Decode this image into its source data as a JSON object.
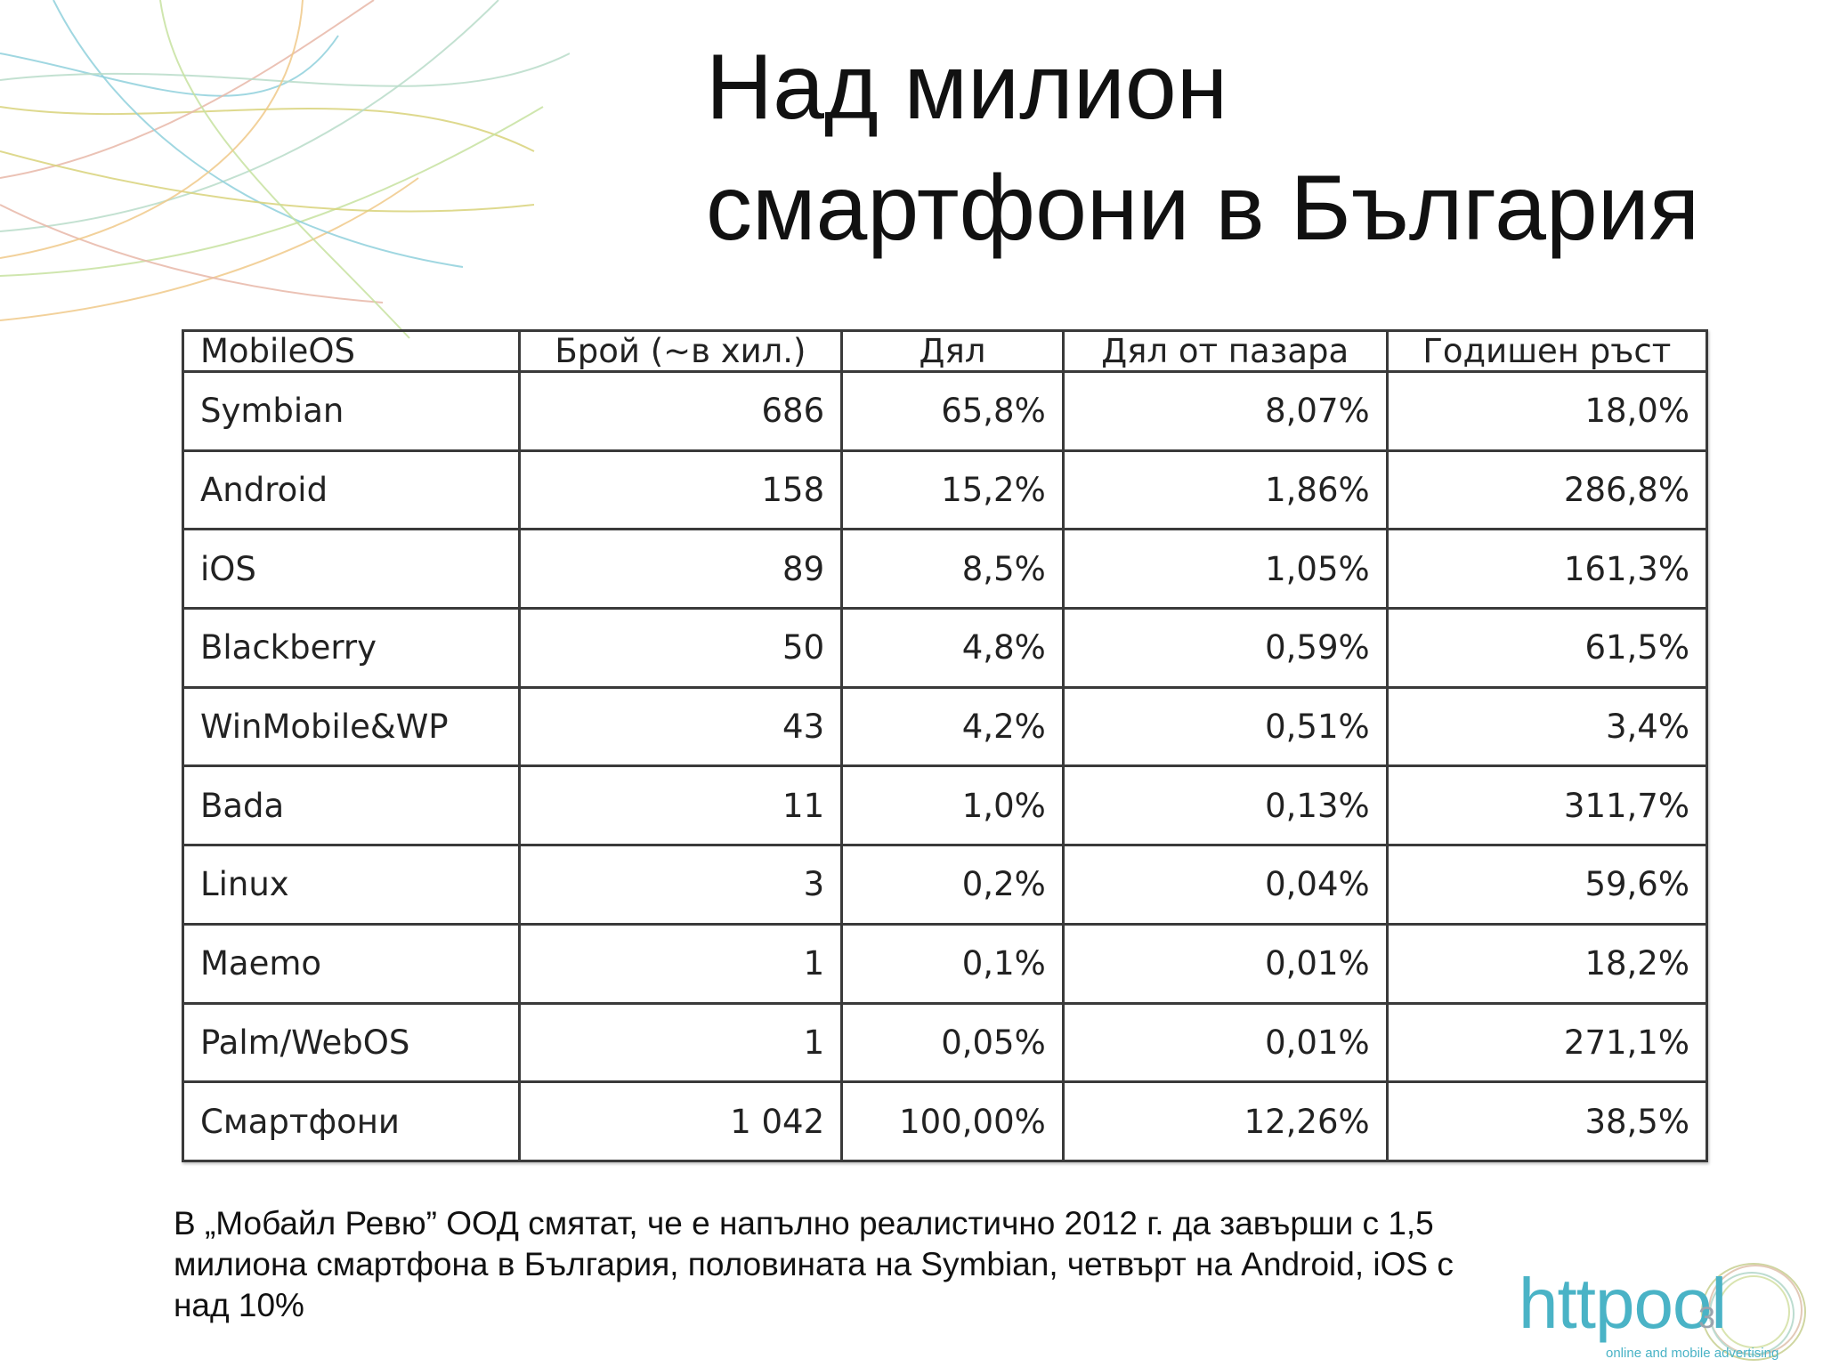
{
  "slide": {
    "title_line1": "Над милион",
    "title_line2": "смартфони в България",
    "page_number": "3"
  },
  "table": {
    "headers": [
      "MobileOS",
      "Брой (~в хил.)",
      "Дял",
      "Дял от пазара",
      "Годишен ръст"
    ],
    "rows": [
      [
        "Symbian",
        "686",
        "65,8%",
        "8,07%",
        "18,0%"
      ],
      [
        "Android",
        "158",
        "15,2%",
        "1,86%",
        "286,8%"
      ],
      [
        "iOS",
        "89",
        "8,5%",
        "1,05%",
        "161,3%"
      ],
      [
        "Blackberry",
        "50",
        "4,8%",
        "0,59%",
        "61,5%"
      ],
      [
        "WinMobile&WP",
        "43",
        "4,2%",
        "0,51%",
        "3,4%"
      ],
      [
        "Bada",
        "11",
        "1,0%",
        "0,13%",
        "311,7%"
      ],
      [
        "Linux",
        "3",
        "0,2%",
        "0,04%",
        "59,6%"
      ],
      [
        "Maemo",
        "1",
        "0,1%",
        "0,01%",
        "18,2%"
      ],
      [
        "Palm/WebOS",
        "1",
        "0,05%",
        "0,01%",
        "271,1%"
      ],
      [
        "Смартфони",
        "1 042",
        "100,00%",
        "12,26%",
        "38,5%"
      ]
    ]
  },
  "note": {
    "line1": "В „Мобайл Ревю” ООД смятат, че е напълно реалистично 2012 г. да завърши с 1,5",
    "line2": "милиона смартфона в България, половината на Symbian, четвърт на Android, iOS с",
    "line3": "над 10%"
  },
  "logo": {
    "text": "httpool",
    "tagline": "online and mobile advertising",
    "color": "#4ab3c6"
  },
  "decoration": {
    "line_colors": [
      "#8fd0dc",
      "#d8d27a",
      "#e8b7a8",
      "#b9dcc9",
      "#c7e2a0",
      "#f0c98a"
    ]
  }
}
